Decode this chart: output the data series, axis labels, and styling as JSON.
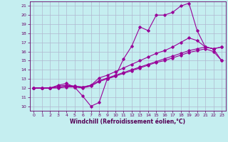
{
  "xlabel": "Windchill (Refroidissement éolien,°C)",
  "xlim": [
    -0.5,
    23.5
  ],
  "ylim": [
    9.5,
    21.5
  ],
  "xticks": [
    0,
    1,
    2,
    3,
    4,
    5,
    6,
    7,
    8,
    9,
    10,
    11,
    12,
    13,
    14,
    15,
    16,
    17,
    18,
    19,
    20,
    21,
    22,
    23
  ],
  "yticks": [
    10,
    11,
    12,
    13,
    14,
    15,
    16,
    17,
    18,
    19,
    20,
    21
  ],
  "background_color": "#c5eef0",
  "grid_color": "#b0b8d0",
  "line_color": "#990099",
  "line1_y": [
    12,
    12,
    12,
    12.3,
    12.5,
    12.1,
    11.1,
    10.0,
    10.4,
    13.0,
    13.3,
    15.2,
    16.6,
    18.7,
    18.3,
    20.0,
    20.0,
    20.3,
    21.0,
    21.3,
    18.3,
    16.5,
    16.3,
    16.5
  ],
  "line2_y": [
    12,
    12,
    12,
    12.2,
    12.3,
    12.2,
    12.1,
    12.3,
    13.1,
    13.4,
    13.8,
    14.2,
    14.6,
    15.0,
    15.4,
    15.8,
    16.1,
    16.5,
    17.0,
    17.5,
    17.2,
    16.5,
    16.3,
    16.5
  ],
  "line3_y": [
    12,
    12,
    12,
    12.1,
    12.2,
    12.2,
    12.1,
    12.3,
    12.8,
    13.1,
    13.4,
    13.7,
    14.0,
    14.3,
    14.6,
    14.9,
    15.2,
    15.5,
    15.8,
    16.1,
    16.3,
    16.5,
    16.3,
    15.0
  ],
  "line4_y": [
    12,
    12,
    12,
    12.0,
    12.1,
    12.1,
    12.0,
    12.2,
    12.7,
    13.0,
    13.3,
    13.6,
    13.9,
    14.2,
    14.5,
    14.8,
    15.0,
    15.3,
    15.6,
    15.9,
    16.1,
    16.3,
    16.0,
    15.0
  ]
}
